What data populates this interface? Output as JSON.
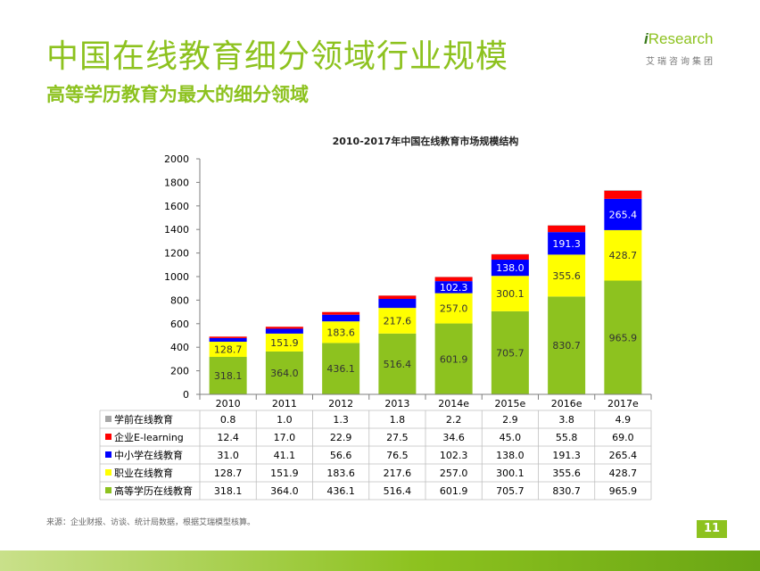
{
  "header": {
    "title": "中国在线教育细分领域行业规模",
    "subtitle": "高等学历教育为最大的细分领域"
  },
  "logo": {
    "brand_i": "i",
    "brand_rest": "Research",
    "cn": "艾瑞咨询集团"
  },
  "footer": {
    "source": "来源：企业财报、访谈、统计局数据，根据艾瑞模型核算。",
    "page_number": "11"
  },
  "colors": {
    "accent": "#8dc21f",
    "grey": "#a6a6a6",
    "red": "#ff0000",
    "blue": "#0000ff",
    "yellow": "#ffff00",
    "green": "#8dc21f"
  },
  "chart_data": {
    "type": "bar",
    "stacked": true,
    "title": "2010-2017年中国在线教育市场规模结构",
    "categories": [
      "2010",
      "2011",
      "2012",
      "2013",
      "2014e",
      "2015e",
      "2016e",
      "2017e"
    ],
    "ylim": [
      0,
      2000
    ],
    "yticks": [
      "0",
      "200",
      "400",
      "600",
      "800",
      "1000",
      "1200",
      "1400",
      "1600",
      "1800",
      "2000"
    ],
    "grid": false,
    "legend_position": "bottom-table",
    "series": [
      {
        "name": "学前在线教育",
        "color": "#a6a6a6",
        "values": [
          0.8,
          1.0,
          1.3,
          1.8,
          2.2,
          2.9,
          3.8,
          4.9
        ],
        "labels": [
          "0.8",
          "1.0",
          "1.3",
          "1.8",
          "2.2",
          "2.9",
          "3.8",
          "4.9"
        ]
      },
      {
        "name": "企业E-learning",
        "color": "#ff0000",
        "values": [
          12.4,
          17.0,
          22.9,
          27.5,
          34.6,
          45.0,
          55.8,
          69.0
        ],
        "labels": [
          "12.4",
          "17.0",
          "22.9",
          "27.5",
          "34.6",
          "45.0",
          "55.8",
          "69.0"
        ]
      },
      {
        "name": "中小学在线教育",
        "color": "#0000ff",
        "values": [
          31.0,
          41.1,
          56.6,
          76.5,
          102.3,
          138.0,
          191.3,
          265.4
        ],
        "labels": [
          "31.0",
          "41.1",
          "56.6",
          "76.5",
          "102.3",
          "138.0",
          "191.3",
          "265.4"
        ]
      },
      {
        "name": "职业在线教育",
        "color": "#ffff00",
        "values": [
          128.7,
          151.9,
          183.6,
          217.6,
          257.0,
          300.1,
          355.6,
          428.7
        ],
        "labels": [
          "128.7",
          "151.9",
          "183.6",
          "217.6",
          "257.0",
          "300.1",
          "355.6",
          "428.7"
        ]
      },
      {
        "name": "高等学历在线教育",
        "color": "#8dc21f",
        "values": [
          318.1,
          364.0,
          436.1,
          516.4,
          601.9,
          705.7,
          830.7,
          965.9
        ],
        "labels": [
          "318.1",
          "364.0",
          "436.1",
          "516.4",
          "601.9",
          "705.7",
          "830.7",
          "965.9"
        ]
      }
    ]
  }
}
